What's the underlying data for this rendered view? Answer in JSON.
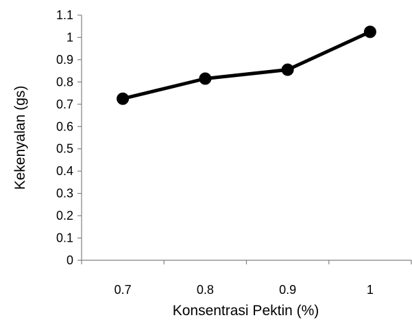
{
  "chart_data": {
    "type": "line",
    "title": "",
    "xlabel": "Konsentrasi Pektin (%)",
    "ylabel": "Kekenyalan (gs)",
    "categories": [
      "0.7",
      "0.8",
      "0.9",
      "1"
    ],
    "values": [
      0.725,
      0.815,
      0.855,
      1.025
    ],
    "ylim": [
      0,
      1.1
    ],
    "y_ticks": [
      "0",
      "0.1",
      "0.2",
      "0.3",
      "0.4",
      "0.5",
      "0.6",
      "0.7",
      "0.8",
      "0.9",
      "1",
      "1.1"
    ],
    "y_tick_values": [
      0,
      0.1,
      0.2,
      0.3,
      0.4,
      0.5,
      0.6,
      0.7,
      0.8,
      0.9,
      1,
      1.1
    ],
    "grid": false,
    "legend": "none",
    "line_color": "#000000",
    "marker_color": "#000000"
  }
}
